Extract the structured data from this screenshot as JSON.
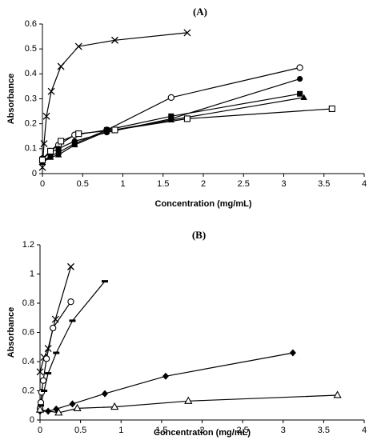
{
  "chart_data": [
    {
      "type": "line",
      "title": "(A)",
      "xlabel": "Concentration (mg/mL)",
      "ylabel": "Absorbance",
      "xlim": [
        0,
        4
      ],
      "ylim": [
        0,
        0.6
      ],
      "x_ticks": [
        "0",
        "0.5",
        "1",
        "1.5",
        "2",
        "2.5",
        "3",
        "3.5",
        "4"
      ],
      "y_ticks": [
        "0",
        "0.1",
        "0.2",
        "0.3",
        "0.4",
        "0.5",
        "0.6"
      ],
      "x_tick_values": [
        0,
        0.5,
        1,
        1.5,
        2,
        2.5,
        3,
        3.5,
        4
      ],
      "y_tick_values": [
        0,
        0.1,
        0.2,
        0.3,
        0.4,
        0.5,
        0.6
      ],
      "grid": false,
      "legend": "none",
      "series": [
        {
          "marker": "x",
          "points": [
            [
              0,
              0.025
            ],
            [
              0.02,
              0.12
            ],
            [
              0.05,
              0.23
            ],
            [
              0.11,
              0.33
            ],
            [
              0.23,
              0.43
            ],
            [
              0.45,
              0.51
            ],
            [
              0.9,
              0.535
            ],
            [
              1.8,
              0.565
            ]
          ]
        },
        {
          "marker": "circle-open",
          "points": [
            [
              0,
              0.06
            ],
            [
              0.1,
              0.09
            ],
            [
              0.2,
              0.115
            ],
            [
              0.4,
              0.155
            ],
            [
              0.8,
              0.175
            ],
            [
              1.6,
              0.305
            ],
            [
              3.2,
              0.425
            ]
          ]
        },
        {
          "marker": "circle-filled",
          "points": [
            [
              0,
              0.06
            ],
            [
              0.1,
              0.085
            ],
            [
              0.2,
              0.1
            ],
            [
              0.4,
              0.13
            ],
            [
              0.8,
              0.165
            ],
            [
              1.6,
              0.22
            ],
            [
              3.2,
              0.38
            ]
          ]
        },
        {
          "marker": "square-filled",
          "points": [
            [
              0,
              0.05
            ],
            [
              0.1,
              0.07
            ],
            [
              0.2,
              0.085
            ],
            [
              0.4,
              0.12
            ],
            [
              0.8,
              0.175
            ],
            [
              1.6,
              0.23
            ],
            [
              3.2,
              0.32
            ]
          ]
        },
        {
          "marker": "triangle-filled",
          "points": [
            [
              0,
              0.045
            ],
            [
              0.1,
              0.065
            ],
            [
              0.2,
              0.075
            ],
            [
              0.4,
              0.115
            ],
            [
              0.8,
              0.17
            ],
            [
              1.6,
              0.215
            ],
            [
              3.25,
              0.305
            ]
          ]
        },
        {
          "marker": "square-open",
          "points": [
            [
              0,
              0.055
            ],
            [
              0.1,
              0.09
            ],
            [
              0.23,
              0.13
            ],
            [
              0.45,
              0.16
            ],
            [
              0.9,
              0.175
            ],
            [
              1.8,
              0.22
            ],
            [
              3.6,
              0.26
            ]
          ]
        }
      ]
    },
    {
      "type": "line",
      "title": "(B)",
      "xlabel": "Concentration (mg/mL)",
      "ylabel": "Absorbance",
      "xlim": [
        0,
        4
      ],
      "ylim": [
        0,
        1.2
      ],
      "x_ticks": [
        "0",
        "0.5",
        "1",
        "1.5",
        "2",
        "2.5",
        "3",
        "3.5",
        "4"
      ],
      "y_ticks": [
        "0",
        "0.2",
        "0.4",
        "0.6",
        "0.8",
        "1",
        "1.2"
      ],
      "x_tick_values": [
        0,
        0.5,
        1,
        1.5,
        2,
        2.5,
        3,
        3.5,
        4
      ],
      "y_tick_values": [
        0,
        0.2,
        0.4,
        0.6,
        0.8,
        1,
        1.2
      ],
      "grid": false,
      "legend": "none",
      "series": [
        {
          "marker": "x",
          "points": [
            [
              0,
              0.33
            ],
            [
              0.05,
              0.43
            ],
            [
              0.1,
              0.49
            ],
            [
              0.19,
              0.69
            ],
            [
              0.38,
              1.05
            ]
          ]
        },
        {
          "marker": "circle-open",
          "points": [
            [
              0,
              0.08
            ],
            [
              0.01,
              0.12
            ],
            [
              0.02,
              0.19
            ],
            [
              0.04,
              0.27
            ],
            [
              0.08,
              0.42
            ],
            [
              0.16,
              0.63
            ],
            [
              0.38,
              0.81
            ]
          ]
        },
        {
          "marker": "dash",
          "points": [
            [
              0.01,
              0.1
            ],
            [
              0.05,
              0.2
            ],
            [
              0.1,
              0.32
            ],
            [
              0.2,
              0.46
            ],
            [
              0.4,
              0.68
            ],
            [
              0.8,
              0.95
            ]
          ]
        },
        {
          "marker": "diamond-filled",
          "points": [
            [
              0,
              0.06
            ],
            [
              0.1,
              0.06
            ],
            [
              0.2,
              0.075
            ],
            [
              0.4,
              0.11
            ],
            [
              0.8,
              0.18
            ],
            [
              1.55,
              0.3
            ],
            [
              3.12,
              0.46
            ]
          ]
        },
        {
          "marker": "triangle-open",
          "points": [
            [
              0,
              0.07
            ],
            [
              0.23,
              0.05
            ],
            [
              0.46,
              0.08
            ],
            [
              0.92,
              0.09
            ],
            [
              1.83,
              0.13
            ],
            [
              3.67,
              0.17
            ]
          ]
        }
      ]
    }
  ]
}
